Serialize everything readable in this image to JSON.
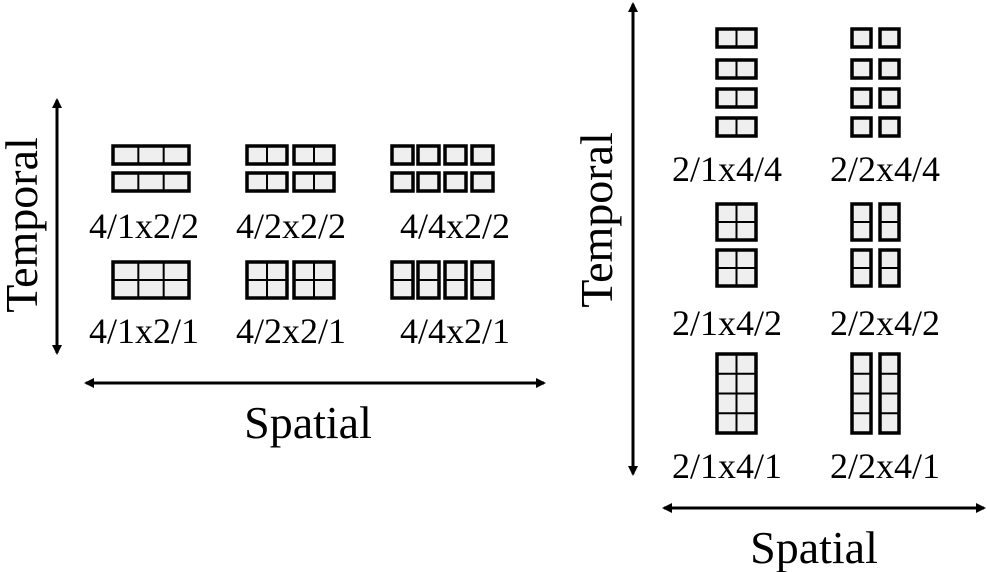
{
  "colors": {
    "stroke": "#000000",
    "fill": "#efefef",
    "text": "#000000"
  },
  "left": {
    "temporal_label": "Temporal",
    "spatial_label": "Spatial",
    "configs": [
      {
        "label": "4/1x2/2"
      },
      {
        "label": "4/2x2/2"
      },
      {
        "label": "4/4x2/2"
      },
      {
        "label": "4/1x2/1"
      },
      {
        "label": "4/2x2/1"
      },
      {
        "label": "4/4x2/1"
      }
    ]
  },
  "right": {
    "temporal_label": "Temporal",
    "spatial_label": "Spatial",
    "configs": [
      {
        "label": "2/1x4/4"
      },
      {
        "label": "2/2x4/4"
      },
      {
        "label": "2/1x4/2"
      },
      {
        "label": "2/2x4/2"
      },
      {
        "label": "2/1x4/1"
      },
      {
        "label": "2/2x4/1"
      }
    ]
  }
}
